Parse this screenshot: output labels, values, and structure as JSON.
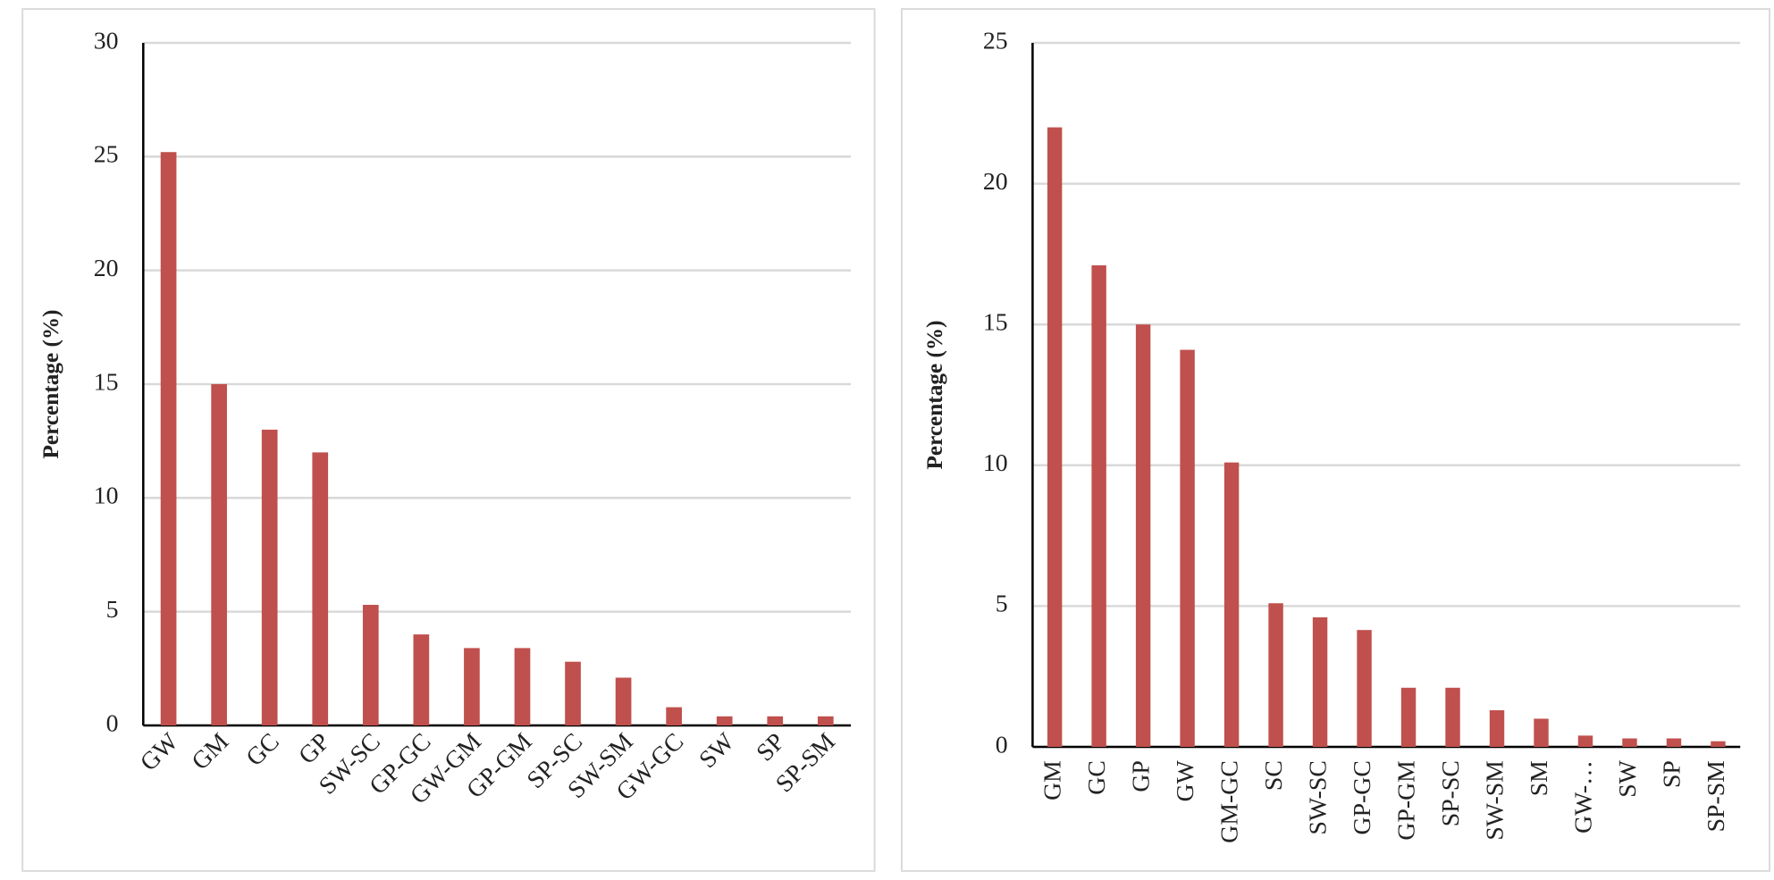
{
  "chart_data": [
    {
      "type": "bar",
      "y_label": "Percentage (%)",
      "categories": [
        "GW",
        "GM",
        "GC",
        "GP",
        "SW-SC",
        "GP-GC",
        "GW-GM",
        "GP-GM",
        "SP-SC",
        "SW-SM",
        "GW-GC",
        "SW",
        "SP",
        "SP-SM"
      ],
      "values": [
        25.2,
        15,
        13,
        12,
        5.3,
        4.0,
        3.4,
        3.4,
        2.8,
        2.1,
        0.8,
        0.4,
        0.4,
        0.4
      ],
      "color": "#c0504d",
      "ylim": [
        0,
        30
      ],
      "yticks": [
        0,
        5,
        10,
        15,
        20,
        25,
        30
      ],
      "grid": true
    },
    {
      "type": "bar",
      "y_label": "Percentage (%)",
      "categories": [
        "GM",
        "GC",
        "GP",
        "GW",
        "GM-GC",
        "SC",
        "SW-SC",
        "GP-GC",
        "GP-GM",
        "SP-SC",
        "SW-SM",
        "SM",
        "GW-…",
        "SW",
        "SP",
        "SP-SM"
      ],
      "values": [
        22,
        17.1,
        15,
        14.1,
        10.1,
        5.1,
        4.6,
        4.15,
        2.1,
        2.1,
        1.3,
        1.0,
        0.4,
        0.3,
        0.3,
        0.2
      ],
      "color": "#c0504d",
      "ylim": [
        0,
        25
      ],
      "yticks": [
        0,
        5,
        10,
        15,
        20,
        25
      ],
      "grid": true
    }
  ]
}
